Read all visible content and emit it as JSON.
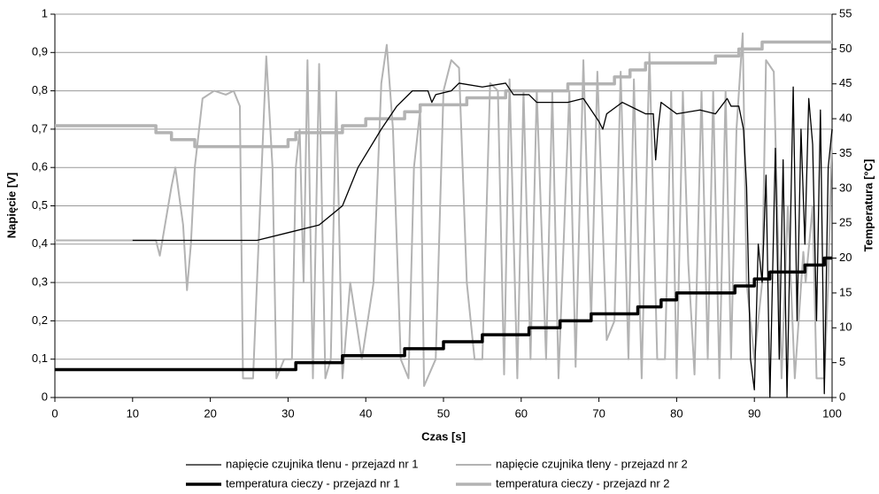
{
  "chart_data": {
    "type": "line",
    "x_label": "Czas [s]",
    "y_label": "Napięcie [V]",
    "y2_label": "Temperatura [°C]",
    "xlim": [
      0,
      100
    ],
    "xticks": [
      0,
      10,
      20,
      30,
      40,
      50,
      60,
      70,
      80,
      90,
      100
    ],
    "ylim": [
      0,
      1
    ],
    "yticks": [
      0,
      {
        "value": 0.1,
        "label": "0,1"
      },
      {
        "value": 0.2,
        "label": "0,2"
      },
      {
        "value": 0.3,
        "label": "0,3"
      },
      {
        "value": 0.4,
        "label": "0,4"
      },
      {
        "value": 0.5,
        "label": "0,5"
      },
      {
        "value": 0.6,
        "label": "0,6"
      },
      {
        "value": 0.7,
        "label": "0,7"
      },
      {
        "value": 0.8,
        "label": "0,8"
      },
      {
        "value": 0.9,
        "label": "0,9"
      },
      1
    ],
    "y2lim": [
      0,
      55
    ],
    "y2ticks": [
      0,
      5,
      10,
      15,
      20,
      25,
      30,
      35,
      40,
      45,
      50,
      55
    ],
    "grid": true,
    "series": [
      {
        "name": "napięcie czujnika tlenu - przejazd nr 1",
        "color": "#000000",
        "width": 1.3,
        "x": [
          10,
          26,
          30,
          34,
          37,
          39,
          42,
          44,
          46,
          48,
          48.5,
          49,
          51,
          52,
          55,
          58,
          59,
          61,
          62,
          66,
          68,
          70,
          70.5,
          71,
          73,
          75,
          76,
          77,
          77.3,
          77.6,
          78,
          80,
          83,
          85,
          86.5,
          87,
          88,
          88.6,
          89,
          89.5,
          90,
          90.5,
          91,
          91.5,
          92,
          92.7,
          93.2,
          93.7,
          94.2,
          95,
          95.5,
          96,
          96.5,
          97,
          97.5,
          98,
          98.5,
          99,
          99.5,
          100
        ],
        "values": [
          0.41,
          0.41,
          0.43,
          0.45,
          0.5,
          0.6,
          0.7,
          0.76,
          0.8,
          0.8,
          0.77,
          0.79,
          0.8,
          0.82,
          0.81,
          0.82,
          0.79,
          0.79,
          0.77,
          0.77,
          0.78,
          0.72,
          0.7,
          0.74,
          0.77,
          0.75,
          0.74,
          0.74,
          0.62,
          0.7,
          0.77,
          0.74,
          0.75,
          0.74,
          0.78,
          0.76,
          0.76,
          0.7,
          0.55,
          0.1,
          0.02,
          0.4,
          0.3,
          0.58,
          0,
          0.65,
          0.1,
          0.62,
          0,
          0.81,
          0.2,
          0.7,
          0.4,
          0.78,
          0.66,
          0.2,
          0.75,
          0.01,
          0.6,
          0.7
        ]
      },
      {
        "name": "napięcie czujnika tleny - przejazd nr 2",
        "color": "#b3b3b3",
        "width": 2,
        "x": [
          0,
          13,
          13.5,
          15,
          15.5,
          16.5,
          17,
          17.5,
          18,
          19,
          20.5,
          22,
          23,
          23.8,
          24.2,
          25.5,
          26,
          27.2,
          28,
          28.5,
          29.5,
          30.5,
          31,
          31.5,
          32,
          32.5,
          33.2,
          34,
          34.8,
          35.5,
          36.2,
          37,
          38,
          39.5,
          41,
          42,
          42.7,
          43.5,
          44.5,
          45.5,
          46.2,
          47,
          47.5,
          49,
          50,
          51,
          52,
          53,
          54,
          55,
          56,
          57,
          57.8,
          58.5,
          59.5,
          60.3,
          61.2,
          62,
          63.2,
          64,
          64.8,
          66.2,
          67,
          68,
          69,
          69.8,
          71,
          72,
          72.8,
          73.8,
          74.5,
          75.5,
          76.5,
          77.5,
          78.5,
          79.3,
          80,
          80.8,
          81.5,
          82.3,
          83.2,
          84,
          84.7,
          85.5,
          86.3,
          87,
          87.7,
          88.5,
          89,
          90,
          91,
          91.5,
          92.5,
          93.5,
          94.3,
          95.2,
          96.3,
          96.6,
          97.5,
          98,
          99,
          99.5,
          100
        ],
        "values": [
          0.41,
          0.41,
          0.37,
          0.55,
          0.6,
          0.45,
          0.28,
          0.4,
          0.6,
          0.78,
          0.8,
          0.79,
          0.8,
          0.76,
          0.05,
          0.05,
          0.3,
          0.89,
          0.6,
          0.05,
          0.1,
          0.1,
          0.6,
          0.7,
          0.3,
          0.88,
          0.05,
          0.87,
          0.05,
          0.1,
          0.8,
          0.05,
          0.3,
          0.1,
          0.3,
          0.82,
          0.92,
          0.7,
          0.1,
          0.05,
          0.6,
          0.75,
          0.03,
          0.1,
          0.8,
          0.88,
          0.86,
          0.3,
          0.1,
          0.1,
          0.82,
          0.8,
          0.06,
          0.83,
          0.05,
          0.8,
          0.1,
          0.8,
          0.1,
          0.8,
          0.05,
          0.8,
          0.08,
          0.88,
          0.2,
          0.85,
          0.15,
          0.2,
          0.85,
          0.1,
          0.83,
          0.05,
          0.9,
          0.1,
          0.1,
          0.8,
          0.05,
          0.8,
          0.35,
          0.06,
          0.8,
          0.1,
          0.8,
          0.05,
          0.8,
          0.1,
          0.7,
          0.95,
          0.3,
          0.1,
          0.3,
          0.88,
          0.85,
          0.05,
          0.5,
          0.05,
          0.38,
          0.3,
          0.5,
          0.05,
          0.05,
          0.3,
          0.7
        ]
      },
      {
        "name": "temperatura cieczy - przejazd nr 1",
        "color": "#000000",
        "width": 3.5,
        "axis": "y2",
        "x": [
          0,
          31,
          31,
          37,
          37,
          45,
          45,
          50,
          50,
          55,
          55,
          61,
          61,
          65,
          65,
          69,
          69,
          75,
          75,
          78,
          78,
          80,
          80,
          87.5,
          87.5,
          90,
          90,
          92,
          92,
          96.5,
          96.5,
          99,
          99,
          100
        ],
        "values": [
          4,
          4,
          5,
          5,
          6,
          6,
          7,
          7,
          8,
          8,
          9,
          9,
          10,
          10,
          11,
          11,
          12,
          12,
          13,
          13,
          14,
          14,
          15,
          15,
          16,
          16,
          17,
          17,
          18,
          18,
          19,
          19,
          20,
          20
        ]
      },
      {
        "name": "temperatura cieczy - przejazd nr 2",
        "color": "#b3b3b3",
        "width": 3.5,
        "axis": "y2",
        "x": [
          0,
          13,
          13,
          15,
          15,
          18,
          18,
          30,
          30,
          31,
          31,
          37,
          37,
          40,
          40,
          45,
          45,
          47,
          47,
          53,
          53,
          58,
          58,
          66,
          66,
          72,
          72,
          74,
          74,
          76,
          76,
          85,
          85,
          88,
          88,
          91,
          91,
          100
        ],
        "values": [
          39,
          39,
          38,
          38,
          37,
          37,
          36,
          36,
          37,
          37,
          38,
          38,
          39,
          39,
          40,
          40,
          41,
          41,
          42,
          42,
          43,
          43,
          44,
          44,
          45,
          45,
          46,
          46,
          47,
          47,
          48,
          48,
          49,
          49,
          50,
          50,
          51,
          51
        ]
      }
    ]
  }
}
